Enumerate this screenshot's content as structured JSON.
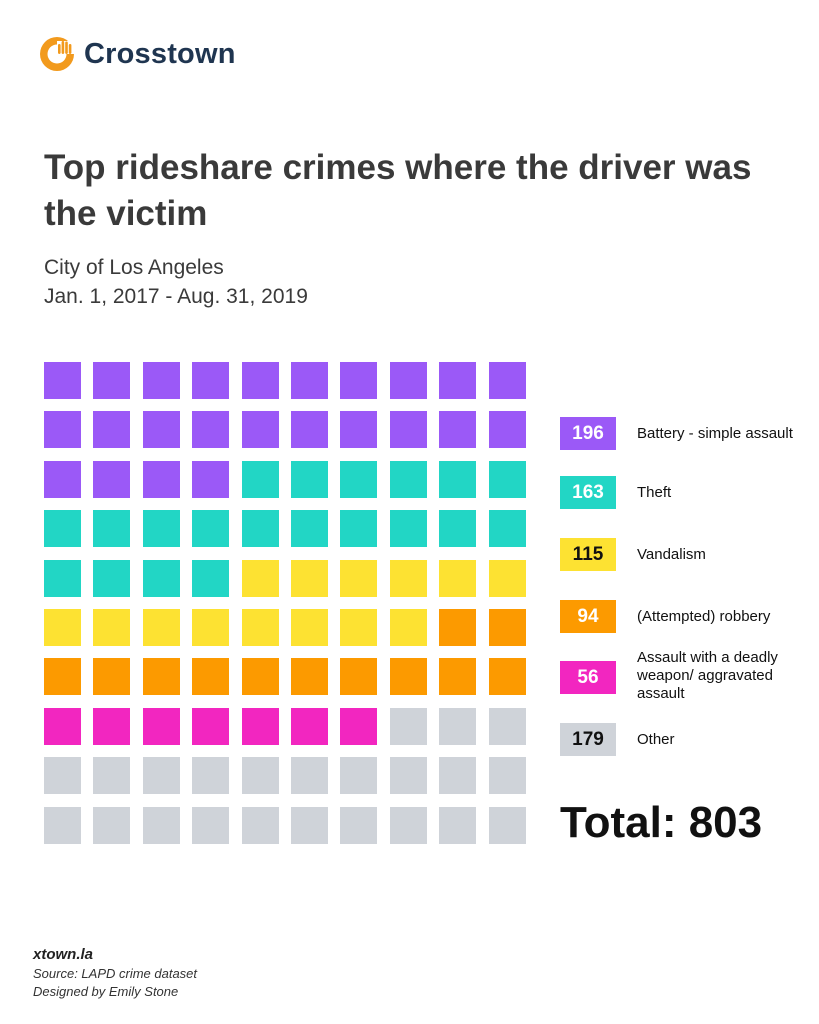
{
  "brand": {
    "name": "Crosstown",
    "logo_color": "#f29a1d",
    "text_color": "#1f3550"
  },
  "header": {
    "title": "Top rideshare crimes where the driver was the victim",
    "subtitle_line1": "City of Los Angeles",
    "subtitle_line2": "Jan. 1, 2017 - Aug. 31, 2019"
  },
  "chart_data": {
    "type": "waffle",
    "grid": {
      "rows": 10,
      "cols": 10
    },
    "total_label": "Total: 803",
    "total": 803,
    "series": [
      {
        "name": "Battery - simple assault",
        "value": 196,
        "value_label": "196",
        "squares": 24,
        "color": "#9b59f7",
        "text_color": "#ffffff"
      },
      {
        "name": "Theft",
        "value": 163,
        "value_label": "163",
        "squares": 20,
        "color": "#22d6c5",
        "text_color": "#ffffff"
      },
      {
        "name": "Vandalism",
        "value": 115,
        "value_label": "115",
        "squares": 14,
        "color": "#fde232",
        "text_color": "#111111"
      },
      {
        "name": "(Attempted) robbery",
        "value": 94,
        "value_label": "94",
        "squares": 12,
        "color": "#fc9a00",
        "text_color": "#ffffff"
      },
      {
        "name": "Assault with a deadly weapon/ aggravated assault",
        "value": 56,
        "value_label": "56",
        "squares": 7,
        "color": "#f226c0",
        "text_color": "#ffffff"
      },
      {
        "name": "Other",
        "value": 179,
        "value_label": "179",
        "squares": 23,
        "color": "#cfd3d9",
        "text_color": "#111111"
      }
    ]
  },
  "footer": {
    "site": "xtown.la",
    "source": "Source: LAPD crime dataset",
    "credit": "Designed by Emily Stone"
  }
}
